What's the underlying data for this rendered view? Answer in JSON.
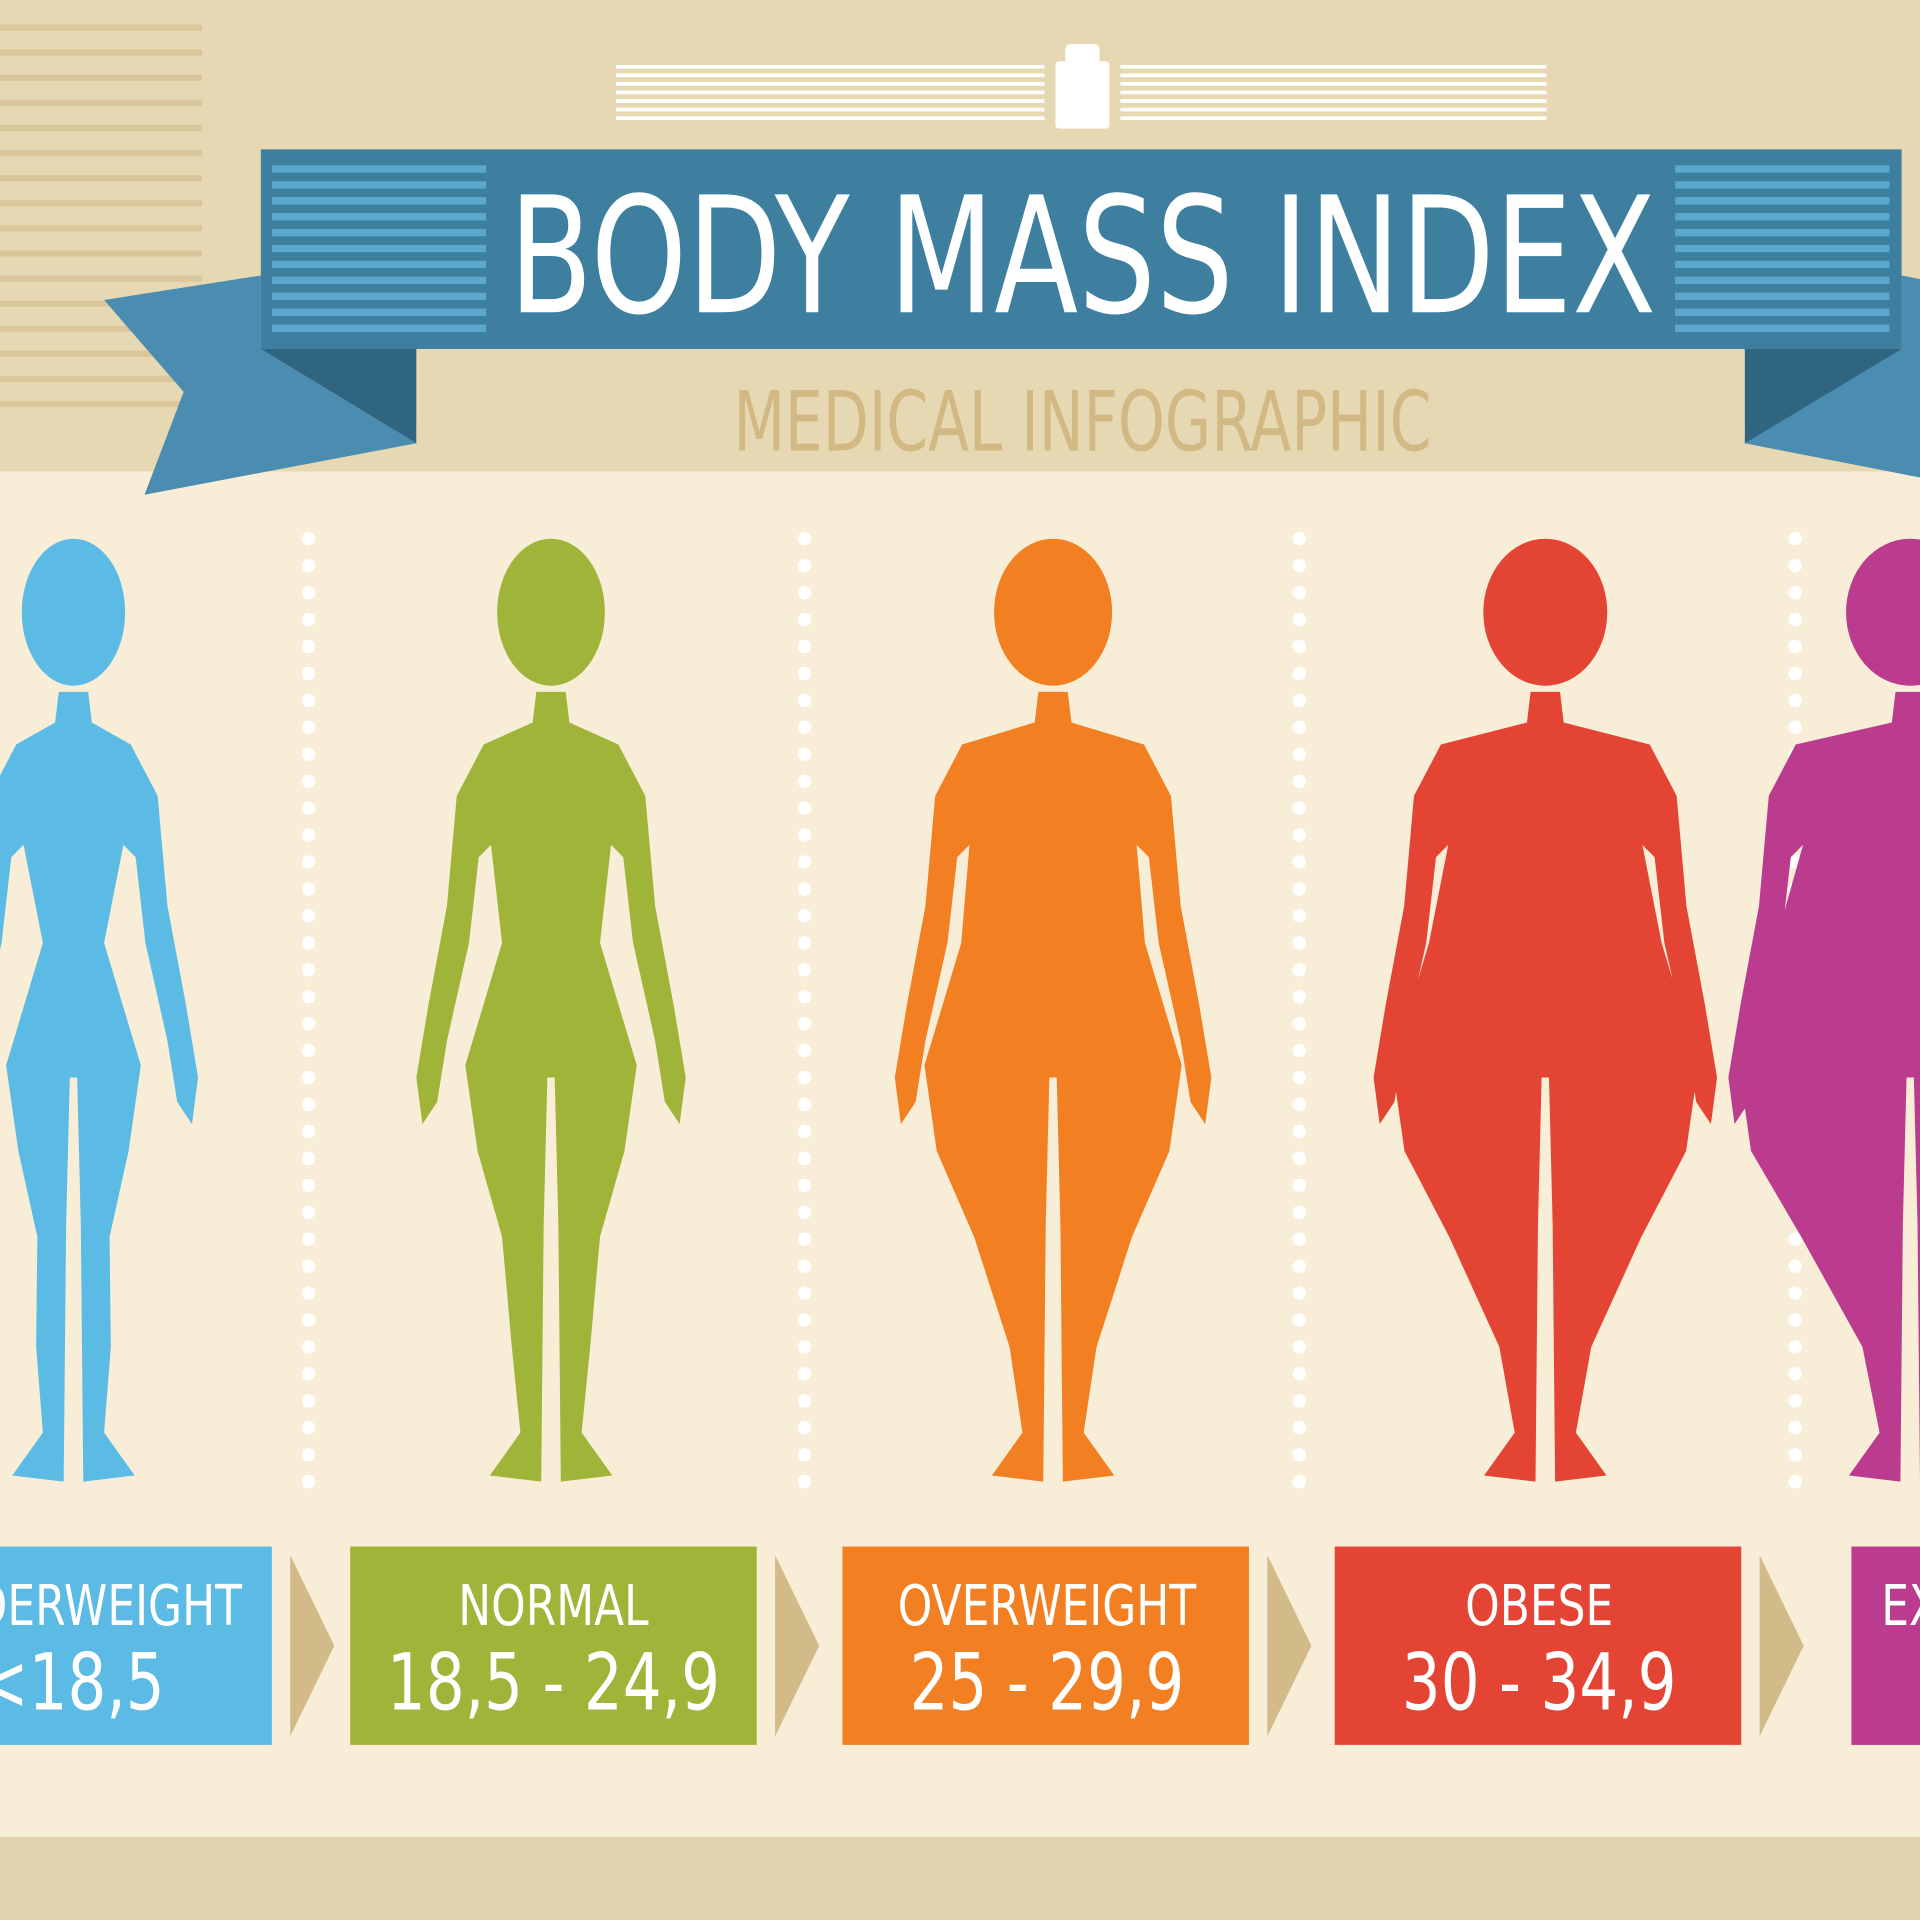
{
  "header": {
    "title": "BODY MASS INDEX",
    "subtitle": "MEDICAL INFOGRAPHIC"
  },
  "categories": [
    {
      "label": "DERWEIGHT",
      "range": "<18,5",
      "color": "#5bbbe4"
    },
    {
      "label": "NORMAL",
      "range": "18,5 - 24,9",
      "color": "#a0b43a"
    },
    {
      "label": "OVERWEIGHT",
      "range": "25 - 29,9",
      "color": "#f28022"
    },
    {
      "label": "OBESE",
      "range": "30 - 34,9",
      "color": "#e44434"
    },
    {
      "label": "EX",
      "color": "#bb3b8e"
    }
  ]
}
